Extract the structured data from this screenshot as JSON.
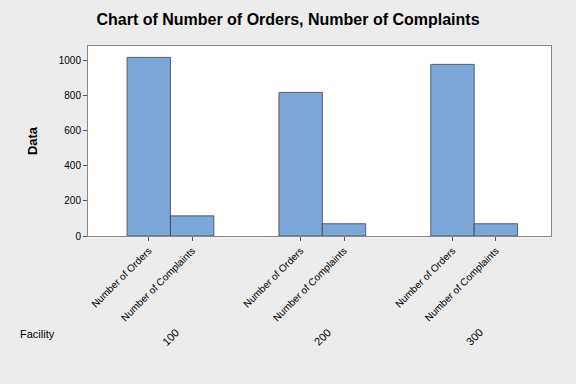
{
  "chart_data": {
    "type": "bar",
    "title": "Chart of Number of Orders, Number of Complaints",
    "ylabel": "Data",
    "xlabel": "Facility",
    "categories": [
      "100",
      "200",
      "300"
    ],
    "series": [
      {
        "name": "Number of Orders",
        "color": "#7da7d9",
        "values": [
          1020,
          820,
          980
        ]
      },
      {
        "name": "Number of Complaints",
        "color": "#7da7d9",
        "values": [
          115,
          70,
          70
        ]
      }
    ],
    "ylim": [
      0,
      1085
    ],
    "yticks": [
      0,
      200,
      400,
      600,
      800,
      1000
    ],
    "grid": false
  }
}
